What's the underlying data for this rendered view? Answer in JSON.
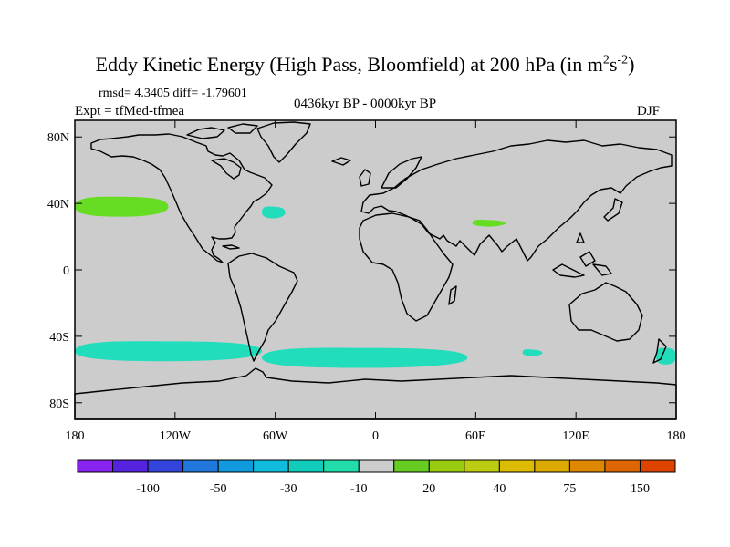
{
  "title": {
    "text": "Eddy Kinetic Energy (High Pass, Bloomfield) at 200 hPa (in m",
    "sup1": "2",
    "mid": "s",
    "sup2": "-2",
    "end": ")"
  },
  "stats": "rmsd= 4.3405 diff= -1.79601",
  "experiment": "Expt = tfMed-tfmea",
  "period": "0436kyr BP - 0000kyr BP",
  "season": "DJF",
  "colors": {
    "background": "#cccccc",
    "coast": "#000000",
    "green": "#66dd22",
    "teal": "#22ddbb"
  },
  "map": {
    "lat_ticks": [
      {
        "value": 80,
        "label": "80N"
      },
      {
        "value": 40,
        "label": "40N"
      },
      {
        "value": 0,
        "label": "0"
      },
      {
        "value": -40,
        "label": "40S"
      },
      {
        "value": -80,
        "label": "80S"
      }
    ],
    "lon_ticks": [
      {
        "value": -180,
        "label": "180"
      },
      {
        "value": -120,
        "label": "120W"
      },
      {
        "value": -60,
        "label": "60W"
      },
      {
        "value": 0,
        "label": "0"
      },
      {
        "value": 60,
        "label": "60E"
      },
      {
        "value": 120,
        "label": "120E"
      },
      {
        "value": 180,
        "label": "180"
      }
    ],
    "anomalies": [
      {
        "name": "north-pacific",
        "color": "green",
        "lon": [
          -180,
          -124
        ],
        "lat": [
          32,
          44
        ]
      },
      {
        "name": "north-atlantic",
        "color": "teal",
        "lon": [
          -68,
          -54
        ],
        "lat": [
          31,
          38
        ]
      },
      {
        "name": "south-asia",
        "color": "green",
        "lon": [
          58,
          78
        ],
        "lat": [
          26,
          30
        ]
      },
      {
        "name": "southern-ocean-pacific",
        "color": "teal",
        "lon": [
          -180,
          -68
        ],
        "lat": [
          -55,
          -43
        ]
      },
      {
        "name": "southern-ocean-atlantic-indian",
        "color": "teal",
        "lon": [
          -68,
          55
        ],
        "lat": [
          -59,
          -47
        ]
      },
      {
        "name": "southern-indian-small",
        "color": "teal",
        "lon": [
          88,
          100
        ],
        "lat": [
          -52,
          -48
        ]
      },
      {
        "name": "southern-dateline",
        "color": "teal",
        "lon": [
          168,
          180
        ],
        "lat": [
          -57,
          -47
        ]
      }
    ]
  },
  "colorbar": {
    "colors": [
      "#8822ee",
      "#5522dd",
      "#3344dd",
      "#2277dd",
      "#1199dd",
      "#11bbdd",
      "#11ccbb",
      "#22ddaa",
      "#cccccc",
      "#66cc22",
      "#99cc11",
      "#bbcc11",
      "#ddbb00",
      "#ddaa00",
      "#dd8800",
      "#dd6600",
      "#dd4400"
    ],
    "labels": [
      "-100",
      "-50",
      "-30",
      "-10",
      "20",
      "40",
      "75",
      "150"
    ]
  }
}
